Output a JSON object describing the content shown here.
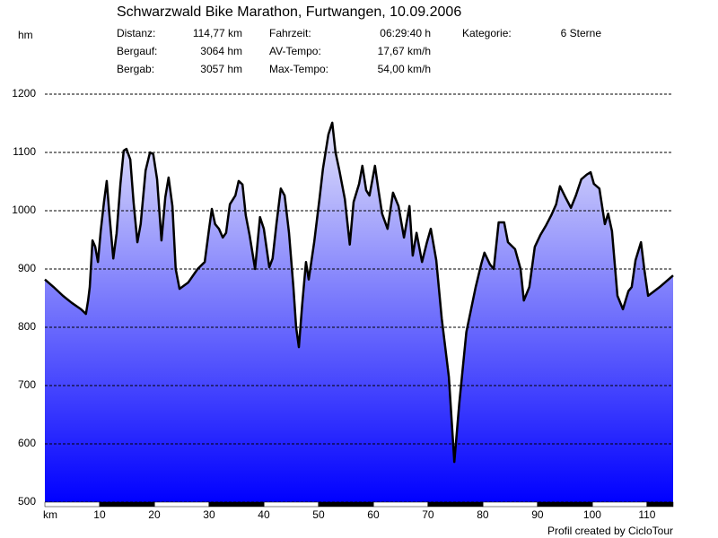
{
  "chart_data": {
    "type": "area",
    "title": "Schwarzwald Bike Marathon, Furtwangen, 10.09.2006",
    "stats": [
      [
        {
          "label": "Distanz:",
          "value": "114,77 km"
        },
        {
          "label": "Bergauf:",
          "value": "3064 hm"
        },
        {
          "label": "Bergab:",
          "value": "3057 hm"
        }
      ],
      [
        {
          "label": "Fahrzeit:",
          "value": "06:29:40 h"
        },
        {
          "label": "AV-Tempo:",
          "value": "17,67 km/h"
        },
        {
          "label": "Max-Tempo:",
          "value": "54,00 km/h"
        }
      ],
      [
        {
          "label": "Kategorie:",
          "value": "6 Sterne"
        }
      ]
    ],
    "y_label": "hm",
    "x_label": "km",
    "credit": "Profil created by CicloTour",
    "x": [
      0,
      1.6,
      3.3,
      4.9,
      6.6,
      7.5,
      7.9,
      8.2,
      8.7,
      9.2,
      9.7,
      10.2,
      10.8,
      11.3,
      11.8,
      12.5,
      13.1,
      13.8,
      14.4,
      14.9,
      15.6,
      16.2,
      16.9,
      17.5,
      18.4,
      19.2,
      19.8,
      20.5,
      21.3,
      22.0,
      22.6,
      23.3,
      23.9,
      24.6,
      26.2,
      27.9,
      29.2,
      30.0,
      30.5,
      31.1,
      31.8,
      32.5,
      33.1,
      33.8,
      34.8,
      35.4,
      36.1,
      36.7,
      37.4,
      38.4,
      39.3,
      40.0,
      41.0,
      41.6,
      42.3,
      43.1,
      43.8,
      44.6,
      45.4,
      45.9,
      46.4,
      47.0,
      47.7,
      48.2,
      49.2,
      50.2,
      50.8,
      51.8,
      52.5,
      53.1,
      53.8,
      54.8,
      55.7,
      56.4,
      57.4,
      58.0,
      58.7,
      59.3,
      60.3,
      60.9,
      61.6,
      62.6,
      63.6,
      64.6,
      65.6,
      66.6,
      67.2,
      67.9,
      68.9,
      69.8,
      70.5,
      71.5,
      72.5,
      73.8,
      74.8,
      75.7,
      77.0,
      78.7,
      79.7,
      80.3,
      81.3,
      82.0,
      82.9,
      83.9,
      84.6,
      85.9,
      86.9,
      87.5,
      88.5,
      89.5,
      90.5,
      91.5,
      92.5,
      93.4,
      94.1,
      95.1,
      96.1,
      97.0,
      98.0,
      99.0,
      99.7,
      100.3,
      101.3,
      102.3,
      102.9,
      103.6,
      104.6,
      105.6,
      106.6,
      107.2,
      107.9,
      108.9,
      109.5,
      110.2,
      112.3,
      114.77
    ],
    "values": [
      882,
      869,
      854,
      842,
      831,
      823,
      846,
      869,
      949,
      938,
      912,
      965,
      1015,
      1051,
      992,
      918,
      961,
      1046,
      1103,
      1106,
      1088,
      1015,
      946,
      977,
      1069,
      1100,
      1097,
      1054,
      949,
      1023,
      1057,
      1008,
      900,
      866,
      877,
      900,
      912,
      969,
      1003,
      977,
      969,
      954,
      962,
      1011,
      1026,
      1051,
      1045,
      992,
      958,
      900,
      989,
      969,
      903,
      918,
      977,
      1038,
      1026,
      962,
      869,
      800,
      766,
      838,
      912,
      882,
      946,
      1023,
      1072,
      1131,
      1151,
      1100,
      1069,
      1020,
      942,
      1015,
      1046,
      1077,
      1035,
      1026,
      1077,
      1038,
      995,
      969,
      1031,
      1008,
      954,
      1008,
      923,
      962,
      912,
      946,
      969,
      915,
      815,
      715,
      569,
      669,
      792,
      869,
      908,
      928,
      908,
      900,
      980,
      980,
      946,
      934,
      900,
      846,
      869,
      938,
      958,
      974,
      992,
      1011,
      1042,
      1023,
      1005,
      1026,
      1054,
      1062,
      1066,
      1046,
      1038,
      977,
      995,
      965,
      854,
      831,
      862,
      869,
      915,
      946,
      900,
      854,
      869,
      889
    ],
    "color": "#000000",
    "fill_top": "#e4e4fa",
    "fill_bottom": "#0000ff",
    "xlim": [
      0,
      114.77
    ],
    "ylim": [
      500,
      1200
    ],
    "xticks": [
      10,
      20,
      30,
      40,
      50,
      60,
      70,
      80,
      90,
      100,
      110
    ],
    "yticks": [
      500,
      600,
      700,
      800,
      900,
      1000,
      1100,
      1200
    ],
    "grid": true
  }
}
